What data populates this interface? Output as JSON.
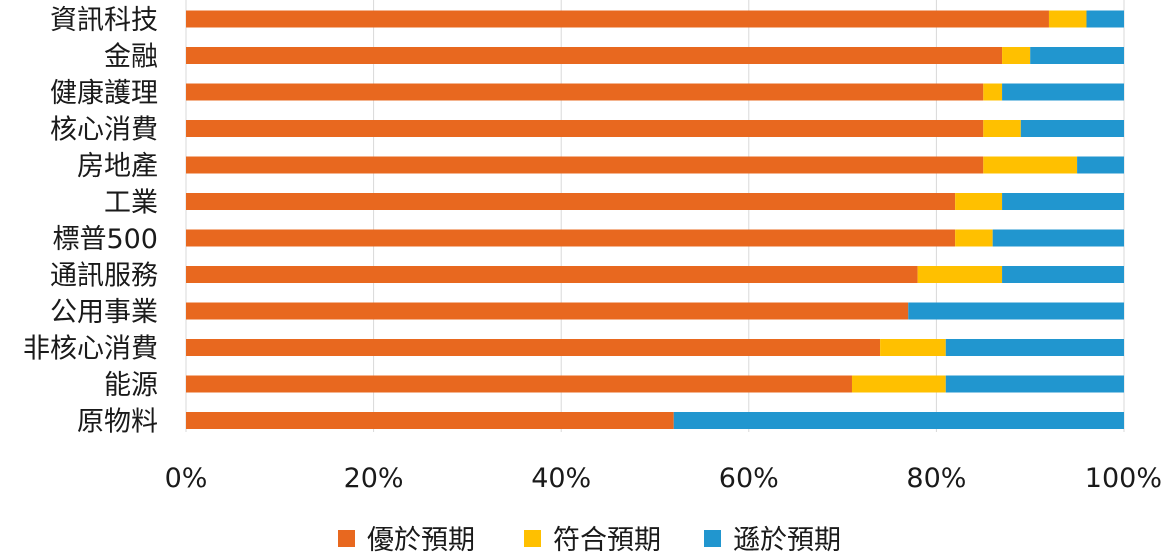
{
  "chart_data": {
    "type": "bar",
    "orientation": "horizontal",
    "stacked": true,
    "percent": true,
    "title": "",
    "xlabel": "",
    "ylabel": "",
    "categories": [
      "資訊科技",
      "金融",
      "健康護理",
      "核心消費",
      "房地產",
      "工業",
      "標普500",
      "通訊服務",
      "公用事業",
      "非核心消費",
      "能源",
      "原物料"
    ],
    "series": [
      {
        "name": "優於預期",
        "color": "#e8681f",
        "values": [
          92,
          87,
          85,
          85,
          85,
          82,
          82,
          78,
          77,
          74,
          71,
          52
        ]
      },
      {
        "name": "符合預期",
        "color": "#ffc000",
        "values": [
          4,
          3,
          2,
          4,
          10,
          5,
          4,
          9,
          0,
          7,
          10,
          0
        ]
      },
      {
        "name": "遜於預期",
        "color": "#2196cf",
        "values": [
          4,
          10,
          13,
          11,
          5,
          13,
          14,
          13,
          23,
          19,
          19,
          48
        ]
      }
    ],
    "xlim": [
      0,
      100
    ],
    "xticks": [
      "0%",
      "20%",
      "40%",
      "60%",
      "80%",
      "100%"
    ],
    "grid": true,
    "legend_position": "bottom"
  }
}
